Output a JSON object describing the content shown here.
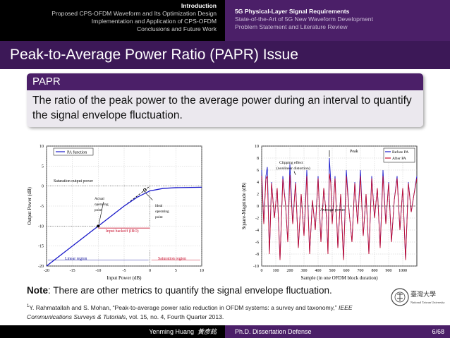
{
  "nav": {
    "left_sections": [
      "Introduction",
      "Proposed CPS-OFDM Waveform and Its Optimization Design",
      "Implementation and Application of CPS-OFDM",
      "Conclusions and Future Work"
    ],
    "right_subsections": [
      "5G Physical-Layer Signal Requirements",
      "State-of-the-Art of 5G New Waveform Development",
      "Problem Statement and Literature Review"
    ]
  },
  "slide": {
    "title": "Peak-to-Average Power Ratio (PAPR) Issue",
    "block_title": "PAPR",
    "block_body": "The ratio of the peak power to the average power during an interval to quantify the signal envelope fluctuation.",
    "note_label": "Note",
    "note_text": ": There are other metrics to quantify the signal envelope fluctuation.",
    "footnote_mark": "1",
    "footnote_authors": "Y. Rahmatallah and S. Mohan, “Peak-to-average power ratio reduction in OFDM systems: a survey and taxonomy,” ",
    "footnote_journal": "IEEE Communications Surveys & Tutorials",
    "footnote_rest": ", vol. 15, no. 4, Fourth Quarter 2013.",
    "seal_text": "National Taiwan University"
  },
  "footer": {
    "author": "Yenming Huang",
    "author_cn": "黃彥銘",
    "talk": "Ph.D. Dissertation Defense",
    "page": "6/68"
  },
  "colors": {
    "navy": "#1a1a9e",
    "red": "#c8102e",
    "pa": "#1a1acc",
    "purple": "#4b1f68"
  },
  "chart_data": [
    {
      "type": "line",
      "xlabel": "Input Power (dB)",
      "ylabel": "Output Power (dB)",
      "xlim": [
        -20,
        10
      ],
      "ylim": [
        -20,
        10
      ],
      "xticks": [
        -20,
        -15,
        -10,
        -5,
        0,
        5,
        10
      ],
      "yticks": [
        10,
        5,
        0,
        -5,
        -10,
        -15,
        -20
      ],
      "series": [
        {
          "name": "PA function",
          "x": [
            -20,
            -10,
            -5,
            -2.5,
            0,
            2.5,
            5,
            10
          ],
          "y": [
            -20,
            -10,
            -5,
            -2.8,
            -1.2,
            -0.6,
            -0.4,
            -0.3
          ]
        }
      ],
      "ideal_line": {
        "x": [
          -20,
          0
        ],
        "y": [
          -20,
          0
        ]
      },
      "annotations": {
        "saturation": "Saturation output power",
        "actual": [
          "Actual",
          "operating",
          "point"
        ],
        "ideal": [
          "Ideal",
          "operating",
          "point"
        ],
        "backoff": "Input backoff (IBO)",
        "linear": "Linear region",
        "saturation_region": "Saturation region"
      },
      "actual_point": {
        "x": -10,
        "y": -10
      },
      "ideal_point": {
        "x": -1,
        "y": -1
      }
    },
    {
      "type": "line",
      "xlabel": "Sample (in one OFDM block duration)",
      "ylabel": "Square-Magnitude (dB)",
      "xlim": [
        0,
        1100
      ],
      "ylim": [
        -10,
        10
      ],
      "xticks": [
        0,
        100,
        200,
        300,
        400,
        500,
        600,
        700,
        800,
        900,
        1000
      ],
      "yticks": [
        10,
        8,
        6,
        4,
        2,
        0,
        -2,
        -4,
        -6,
        -8,
        -10
      ],
      "series": [
        {
          "name": "Before PA",
          "x": [
            0,
            15,
            30,
            40,
            55,
            70,
            90,
            110,
            130,
            150,
            170,
            185,
            200,
            220,
            240,
            260,
            280,
            300,
            320,
            340,
            360,
            380,
            400,
            420,
            440,
            460,
            470,
            480,
            490,
            500,
            520,
            540,
            560,
            580,
            600,
            620,
            640,
            660,
            680,
            700,
            720,
            740,
            760,
            780,
            800,
            820,
            840,
            860,
            880,
            900,
            920,
            940,
            960,
            980,
            1000,
            1020,
            1040,
            1060,
            1080,
            1100
          ],
          "y": [
            6,
            -3,
            5,
            6.5,
            -8,
            4,
            -2,
            3,
            -9,
            5,
            0,
            -6,
            7,
            -3,
            4,
            -7,
            2,
            -5,
            6,
            -8,
            1,
            -4,
            5,
            -6,
            3,
            -2,
            -8,
            8,
            4,
            -3,
            5,
            -7,
            2,
            -9,
            6,
            -1,
            -6,
            4,
            -3,
            6,
            -5,
            2,
            -8,
            5,
            -2,
            3,
            -7,
            6,
            -3,
            4,
            -6,
            1,
            5,
            -4,
            3,
            -9,
            4,
            -1,
            2,
            5
          ]
        },
        {
          "name": "After PA",
          "x": [
            0,
            15,
            30,
            40,
            55,
            70,
            90,
            110,
            130,
            150,
            170,
            185,
            200,
            220,
            240,
            260,
            280,
            300,
            320,
            340,
            360,
            380,
            400,
            420,
            440,
            460,
            470,
            480,
            490,
            500,
            520,
            540,
            560,
            580,
            600,
            620,
            640,
            660,
            680,
            700,
            720,
            740,
            760,
            780,
            800,
            820,
            840,
            860,
            880,
            900,
            920,
            940,
            960,
            980,
            1000,
            1020,
            1040,
            1060,
            1080,
            1100
          ],
          "y": [
            5,
            -3,
            4.5,
            5,
            -8,
            3.8,
            -2,
            3,
            -9,
            4.5,
            0,
            -6,
            5.2,
            -3,
            3.8,
            -7,
            2,
            -5,
            5,
            -8,
            1,
            -4,
            4.6,
            -6,
            3,
            -2,
            -8,
            5.4,
            3.8,
            -3,
            4.6,
            -7,
            2,
            -9,
            5,
            -1,
            -6,
            3.8,
            -3,
            5,
            -5,
            2,
            -8,
            4.6,
            -2,
            3,
            -7,
            5,
            -3,
            3.8,
            -6,
            1,
            4.6,
            -4,
            3,
            -9,
            3.8,
            -1,
            2,
            4.6
          ]
        }
      ],
      "average_power": 0,
      "annotations": {
        "peak": "Peak",
        "clipping": [
          "Clipping effect",
          "(nonlinear distortion)"
        ],
        "average": "Average power"
      }
    }
  ]
}
